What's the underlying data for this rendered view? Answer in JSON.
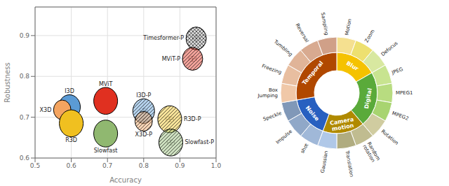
{
  "chart_data": [
    {
      "type": "scatter",
      "xlabel": "Accuracy",
      "ylabel": "Robustness",
      "xlim": [
        0.5,
        1.0
      ],
      "ylim": [
        0.6,
        0.97
      ],
      "xticks": [
        0.5,
        0.6,
        0.7,
        0.8,
        0.9,
        {
          "value": 1.0,
          "label": "1.0"
        }
      ],
      "yticks": [
        0.6,
        0.7,
        0.8,
        0.9
      ],
      "grid": true,
      "series": [
        {
          "name": "I3D",
          "color": "#5b9bd5",
          "marker": "circle",
          "x": [
            0.595
          ],
          "values": [
            0.725
          ],
          "radius": [
            0.03
          ],
          "xerr": [
            0.01
          ],
          "yerr": [
            0.006
          ]
        },
        {
          "name": "X3D",
          "color": "#f4a460",
          "marker": "circle",
          "x": [
            0.575
          ],
          "values": [
            0.718
          ],
          "radius": [
            0.024
          ],
          "xerr": [
            0.01
          ],
          "yerr": [
            0.006
          ]
        },
        {
          "name": "R3D",
          "color": "#f0c020",
          "marker": "circle",
          "x": [
            0.6
          ],
          "values": [
            0.685
          ],
          "radius": [
            0.033
          ],
          "xerr": [
            0.01
          ],
          "yerr": [
            0.006
          ]
        },
        {
          "name": "MViT",
          "color": "#e03020",
          "marker": "circle",
          "x": [
            0.695
          ],
          "values": [
            0.74
          ],
          "radius": [
            0.033
          ],
          "xerr": [
            0.01
          ],
          "yerr": [
            0.006
          ]
        },
        {
          "name": "Slowfast",
          "color": "#90b870",
          "marker": "circle",
          "x": [
            0.695
          ],
          "values": [
            0.66
          ],
          "radius": [
            0.033
          ],
          "xerr": [
            0.01
          ],
          "yerr": [
            0.006
          ]
        },
        {
          "name": "I3D-P",
          "color": "#5b9bd5",
          "marker": "hatched",
          "x": [
            0.8
          ],
          "values": [
            0.715
          ],
          "radius": [
            0.03
          ],
          "xerr": [
            0.01
          ],
          "yerr": [
            0.006
          ]
        },
        {
          "name": "X3D-P",
          "color": "#f4a460",
          "marker": "hatched",
          "x": [
            0.8
          ],
          "values": [
            0.69
          ],
          "radius": [
            0.024
          ],
          "xerr": [
            0.01
          ],
          "yerr": [
            0.006
          ]
        },
        {
          "name": "R3D-P",
          "color": "#f0c020",
          "marker": "hatched",
          "x": [
            0.872
          ],
          "values": [
            0.695
          ],
          "radius": [
            0.033
          ],
          "xerr": [
            0.01
          ],
          "yerr": [
            0.006
          ]
        },
        {
          "name": "Slowfast-P",
          "color": "#90b870",
          "marker": "hatched",
          "x": [
            0.875
          ],
          "values": [
            0.638
          ],
          "radius": [
            0.033
          ],
          "xerr": [
            0.01
          ],
          "yerr": [
            0.006
          ]
        },
        {
          "name": "Timesformer-P",
          "color": "#b0b0b0",
          "marker": "cross-hatched",
          "x": [
            0.945
          ],
          "values": [
            0.893
          ],
          "radius": [
            0.028
          ],
          "xerr": [
            0.01
          ],
          "yerr": [
            0.006
          ]
        },
        {
          "name": "MViT-P",
          "color": "#e03020",
          "marker": "hatched",
          "x": [
            0.935
          ],
          "values": [
            0.843
          ],
          "radius": [
            0.028
          ],
          "xerr": [
            0.01
          ],
          "yerr": [
            0.006
          ]
        }
      ]
    },
    {
      "type": "donut",
      "series": [
        {
          "categories": [
            "Blur",
            "Digital",
            "Camera\nmotion",
            "Noise",
            "Temporal"
          ],
          "values": [
            3,
            4,
            3,
            3,
            5
          ],
          "colors": [
            "#f5c200",
            "#5aaa3a",
            "#b08a00",
            "#2860c0",
            "#b04800"
          ]
        },
        {
          "categories": [
            "Motion",
            "Zoom",
            "Defocus",
            "JPEG",
            "MPEG1",
            "MPEG2",
            "Rotation",
            "Random\nrotation",
            "Translation",
            "Gaussian",
            "shot",
            "Impulse",
            "Speckle",
            "Box\nJumping",
            "Freezing",
            "Tumbling",
            "Reversal",
            "Sampling"
          ],
          "values": [
            1,
            1,
            1,
            1,
            1,
            1,
            1,
            1,
            1,
            1,
            1,
            1,
            1,
            1,
            1,
            1,
            1,
            1
          ],
          "colors": [
            "#f5e090",
            "#ede070",
            "#d8e8a0",
            "#c8e490",
            "#b8dc80",
            "#a8d470",
            "#d0cca0",
            "#c0bc90",
            "#b0ac80",
            "#b0c8e8",
            "#a0b8d8",
            "#90a8c8",
            "#8098b8",
            "#f0c8a8",
            "#e8bea0",
            "#e0b498",
            "#d8aa90",
            "#d0a088"
          ]
        }
      ]
    }
  ]
}
